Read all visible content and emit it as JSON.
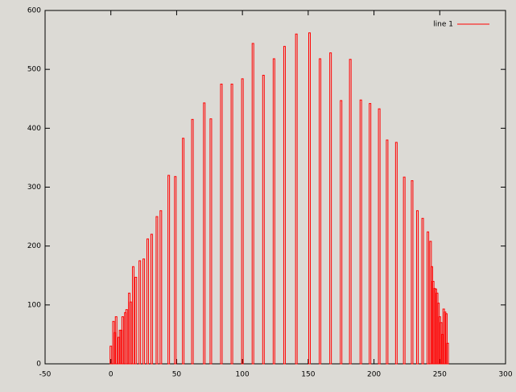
{
  "chart_data": {
    "type": "bar",
    "x": [
      0,
      2,
      3,
      4,
      6,
      7,
      8,
      9,
      11,
      12,
      14,
      15,
      17,
      19,
      22,
      25,
      28,
      31,
      35,
      38,
      44,
      49,
      55,
      62,
      71,
      76,
      84,
      92,
      100,
      108,
      116,
      124,
      132,
      141,
      151,
      159,
      167,
      175,
      182,
      190,
      197,
      204,
      210,
      217,
      223,
      229,
      233,
      237,
      241,
      243,
      244,
      245,
      246,
      247,
      248,
      249,
      250,
      251,
      252,
      253,
      254,
      255,
      256
    ],
    "series": [
      {
        "name": "line 1",
        "color": "#ff0000",
        "values": [
          30,
          72,
          53,
          80,
          45,
          57,
          57,
          80,
          87,
          92,
          120,
          105,
          165,
          147,
          175,
          178,
          212,
          220,
          250,
          260,
          320,
          318,
          383,
          415,
          443,
          416,
          475,
          475,
          484,
          544,
          490,
          518,
          539,
          560,
          562,
          518,
          528,
          447,
          517,
          448,
          442,
          433,
          380,
          376,
          317,
          311,
          260,
          247,
          224,
          208,
          165,
          140,
          128,
          127,
          120,
          103,
          80,
          70,
          50,
          93,
          88,
          85,
          35
        ]
      }
    ],
    "xlim": [
      -50,
      300
    ],
    "xticks": [
      -50,
      0,
      50,
      100,
      150,
      200,
      250,
      300
    ],
    "ylim": [
      0,
      600
    ],
    "yticks": [
      0,
      100,
      200,
      300,
      400,
      500,
      600
    ],
    "legend": "upper right"
  }
}
